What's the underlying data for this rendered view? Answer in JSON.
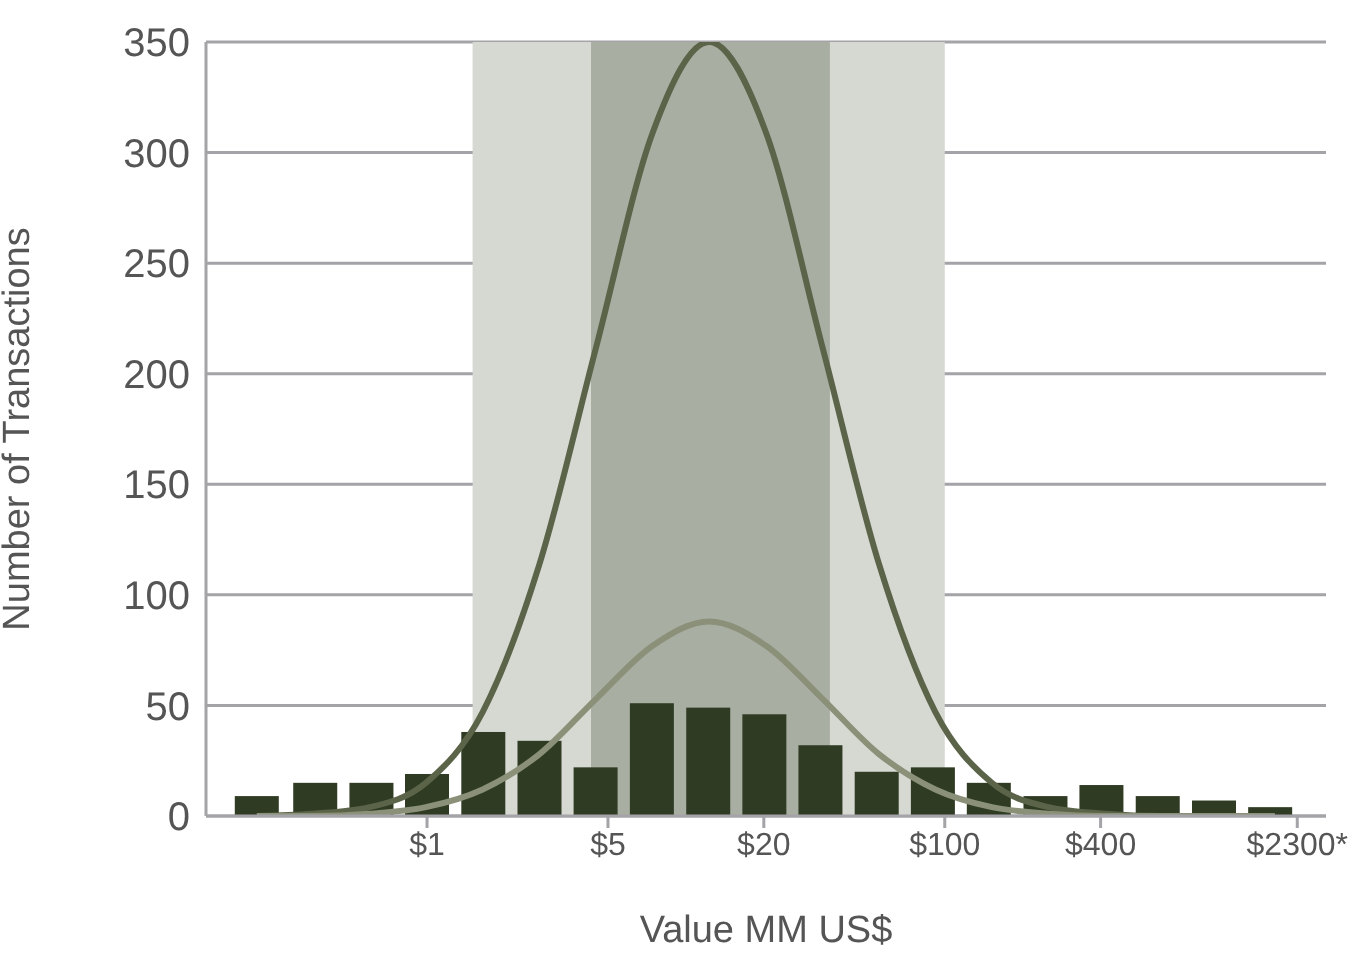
{
  "chart_data": {
    "type": "bar",
    "xlabel": "Value MM US$",
    "ylabel": "Number of Transactions",
    "x": [
      0.22,
      0.37,
      0.61,
      1,
      1.65,
      2.72,
      4.48,
      7.39,
      12.2,
      20.1,
      33.1,
      54.6,
      90,
      148,
      245,
      403,
      665,
      1097,
      1808
    ],
    "series": [
      {
        "color": "#2f3b23",
        "values": [
          9,
          15,
          15,
          19,
          38,
          34,
          22,
          51,
          49,
          46,
          32,
          20,
          22,
          15,
          9,
          14,
          9,
          7,
          4
        ]
      },
      {
        "type": "line",
        "color": "#5b6448",
        "x": [
          0.22,
          0.36,
          0.6,
          0.99,
          1.64,
          2.72,
          4.5,
          7.44,
          12.3,
          20.4,
          33.7,
          55.7,
          92,
          152,
          252,
          416,
          689,
          1139,
          1884
        ],
        "values": [
          0,
          1,
          4,
          15,
          47,
          114,
          212,
          309,
          350,
          309,
          212,
          114,
          47,
          15,
          4,
          1,
          0,
          0,
          0
        ]
      },
      {
        "type": "line",
        "color": "#8a9178",
        "x": [
          0.22,
          0.36,
          0.6,
          0.99,
          1.64,
          2.72,
          4.5,
          7.44,
          12.3,
          20.4,
          33.7,
          55.7,
          92,
          152,
          252,
          416,
          689,
          1139,
          1884
        ],
        "values": [
          0,
          0,
          1,
          4,
          12,
          28,
          53,
          77,
          88,
          77,
          53,
          28,
          12,
          4,
          1,
          0,
          0,
          0,
          0
        ]
      }
    ],
    "bands": [
      {
        "axis": "x",
        "from": 1.5,
        "to": 100,
        "color": "#d6d8d2"
      },
      {
        "axis": "x",
        "from": 4.3,
        "to": 36,
        "color": "#a9aea3"
      }
    ],
    "log": "x",
    "grid": "y",
    "xlim": [
      0.14,
      2970
    ],
    "xticks": [
      {
        "value": 1,
        "label": "$1"
      },
      {
        "value": 5,
        "label": "$5"
      },
      {
        "value": 20,
        "label": "$20"
      },
      {
        "value": 100,
        "label": "$100"
      },
      {
        "value": 400,
        "label": "$400"
      },
      {
        "value": 2300,
        "label": "$2300*"
      }
    ],
    "ylim": [
      0,
      350
    ],
    "yticks": [
      0,
      50,
      100,
      150,
      200,
      250,
      300,
      350
    ]
  }
}
